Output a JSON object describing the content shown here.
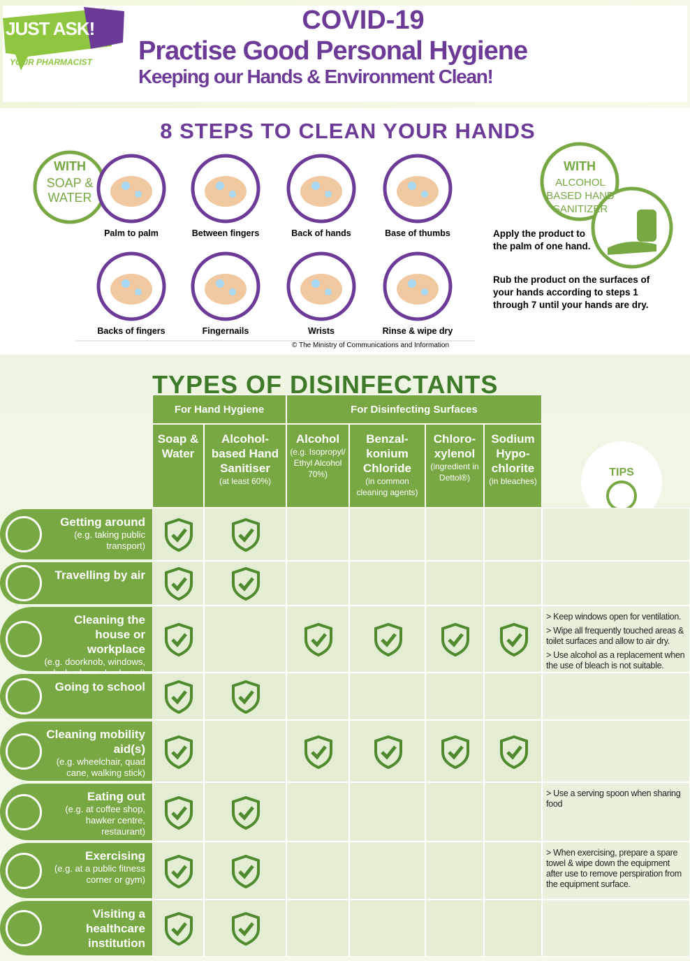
{
  "header": {
    "logo": "JUST ASK!",
    "logo_sub": "YOUR PHARMACIST",
    "title": "COVID-19",
    "subtitle": "Practise Good Personal Hygiene",
    "tagline": "Keeping our Hands & Environment Clean!"
  },
  "hand_steps": {
    "title": "8 STEPS TO CLEAN YOUR HANDS",
    "soap_badge": {
      "with": "WITH",
      "method": "SOAP & WATER"
    },
    "steps": [
      "Palm to palm",
      "Between fingers",
      "Back of hands",
      "Base of thumbs",
      "Backs of fingers",
      "Fingernails",
      "Wrists",
      "Rinse & wipe dry"
    ],
    "credit": "© The Ministry of Communications and Information",
    "sanitizer_badge": {
      "with": "WITH",
      "method": "ALCOHOL BASED HAND SANITIZER"
    },
    "sanitizer_instructions": [
      "Apply the product to the palm of one hand.",
      "Rub the product on the surfaces of your hands according to steps 1 through 7 until your hands are dry."
    ]
  },
  "disinfectants": {
    "title": "TYPES OF DISINFECTANTS",
    "groups": [
      "For Hand Hygiene",
      "For Disinfecting Surfaces"
    ],
    "columns": [
      {
        "name": "Soap & Water"
      },
      {
        "name": "Alcohol-based Hand Sanitiser",
        "note": "(at least 60%)"
      },
      {
        "name": "Alcohol",
        "note": "(e.g. Isopropyl/ Ethyl Alcohol 70%)"
      },
      {
        "name": "Benzal-konium Chloride",
        "note": "(in common cleaning agents)"
      },
      {
        "name": "Chloro-xylenol",
        "note": "(ingredient in Dettol®)"
      },
      {
        "name": "Sodium Hypo-chlorite",
        "note": "(in bleaches)"
      }
    ],
    "tips_label": "TIPS",
    "rows": [
      {
        "activity": "Getting around",
        "detail": "(e.g. taking public transport)",
        "checks": [
          true,
          true,
          false,
          false,
          false,
          false
        ]
      },
      {
        "activity": "Travelling by air",
        "checks": [
          true,
          true,
          false,
          false,
          false,
          false
        ]
      },
      {
        "activity": "Cleaning the house or workplace",
        "detail": "(e.g. doorknob, windows, desk, phone, keyboard)",
        "checks": [
          true,
          false,
          true,
          true,
          true,
          true
        ],
        "tips": [
          "> Keep windows open for ventilation.",
          "> Wipe all frequently touched areas & toilet surfaces and allow to air dry.",
          "> Use alcohol as a replacement when the use of bleach is not suitable."
        ]
      },
      {
        "activity": "Going to school",
        "checks": [
          true,
          true,
          false,
          false,
          false,
          false
        ]
      },
      {
        "activity": "Cleaning mobility aid(s)",
        "detail": "(e.g. wheelchair, quad cane, walking stick)",
        "checks": [
          true,
          false,
          true,
          true,
          true,
          true
        ]
      },
      {
        "activity": "Eating out",
        "detail": "(e.g. at coffee shop, hawker centre, restaurant)",
        "checks": [
          true,
          true,
          false,
          false,
          false,
          false
        ],
        "tips": [
          "> Use a serving spoon when sharing food"
        ]
      },
      {
        "activity": "Exercising",
        "detail": "(e.g. at a public fitness corner or gym)",
        "checks": [
          true,
          true,
          false,
          false,
          false,
          false
        ],
        "tips": [
          "> When exercising, prepare a spare towel & wipe down the equipment after use to remove perspiration from the equipment surface."
        ]
      },
      {
        "activity": "Visiting a healthcare institution",
        "checks": [
          true,
          true,
          false,
          false,
          false,
          false
        ]
      }
    ]
  }
}
